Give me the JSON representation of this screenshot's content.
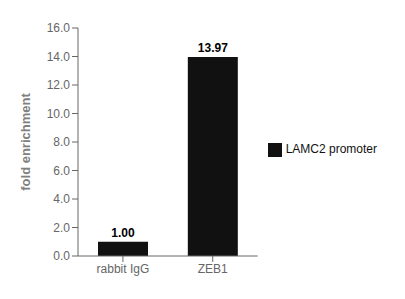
{
  "chart_data": {
    "type": "bar",
    "categories": [
      "rabbit IgG",
      "ZEB1"
    ],
    "series": [
      {
        "name": "LAMC2 promoter",
        "color": "#111111",
        "values": [
          1.0,
          13.97
        ],
        "value_labels": [
          "1.00",
          "13.97"
        ]
      }
    ],
    "ylabel": "fold enrichment",
    "ylim": [
      0,
      16.0
    ],
    "yticks": [
      {
        "value": 0.0,
        "label": "0.0"
      },
      {
        "value": 2.0,
        "label": "2.0"
      },
      {
        "value": 4.0,
        "label": "4.0"
      },
      {
        "value": 6.0,
        "label": "6.0"
      },
      {
        "value": 8.0,
        "label": "8.0"
      },
      {
        "value": 10.0,
        "label": "10.0"
      },
      {
        "value": 12.0,
        "label": "12.0"
      },
      {
        "value": 14.0,
        "label": "14.0"
      },
      {
        "value": 16.0,
        "label": "16.0"
      }
    ],
    "data_labels": true,
    "grid": false,
    "legend": "right"
  }
}
